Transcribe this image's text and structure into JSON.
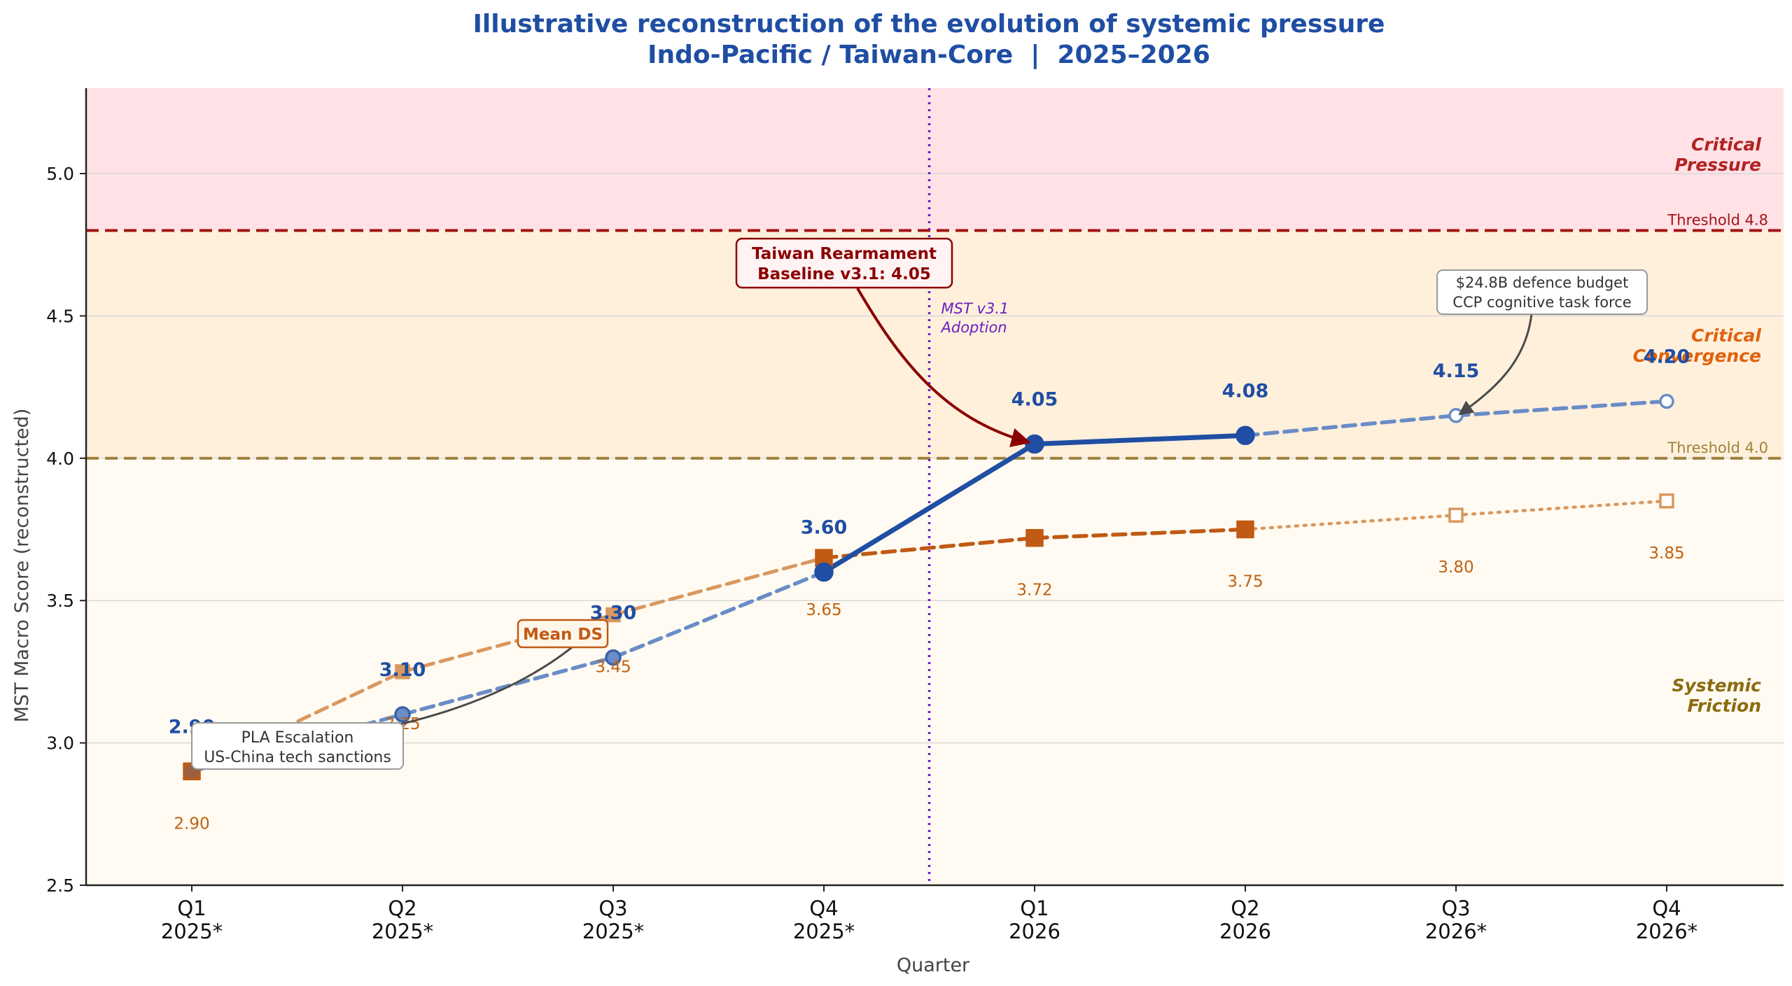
{
  "chart_data": {
    "type": "line",
    "title_line1": "Illustrative reconstruction of the evolution of systemic pressure",
    "title_line2": "Indo-Pacific / Taiwan-Core  |  2025–2026",
    "xlabel": "Quarter",
    "ylabel": "MST Macro Score (reconstructed)",
    "ylim": [
      2.5,
      5.3
    ],
    "yticks": [
      "2.5",
      "3.0",
      "3.5",
      "4.0",
      "4.5",
      "5.0"
    ],
    "categories": [
      [
        "Q1",
        "2025*"
      ],
      [
        "Q2",
        "2025*"
      ],
      [
        "Q3",
        "2025*"
      ],
      [
        "Q4",
        "2025*"
      ],
      [
        "Q1",
        "2026"
      ],
      [
        "Q2",
        "2026"
      ],
      [
        "Q3",
        "2026*"
      ],
      [
        "Q4",
        "2026*"
      ]
    ],
    "zones": [
      {
        "label": "Critical\nPressure",
        "from": 4.8,
        "to": 5.3,
        "color": "#ffe1e6",
        "label_color": "#b22222"
      },
      {
        "label": "Critical\nConvergence",
        "from": 4.0,
        "to": 4.8,
        "color": "#fff0dc",
        "label_color": "#e0620e"
      },
      {
        "label": "Systemic\nFriction",
        "from": 2.5,
        "to": 4.0,
        "color": "#fffbf2",
        "label_color": "#8b6b0e"
      }
    ],
    "thresholds": [
      {
        "value": 4.8,
        "label": "Threshold 4.8",
        "color": "#a31515"
      },
      {
        "value": 4.0,
        "label": "Threshold 4.0",
        "color": "#a0823c"
      }
    ],
    "series": [
      {
        "values": [
          2.9,
          3.1,
          3.3,
          3.6,
          4.05,
          4.08,
          4.15,
          4.2
        ],
        "labels": [
          "2.90",
          "3.10",
          "3.30",
          "3.60",
          "4.05",
          "4.08",
          "4.15",
          "4.20"
        ],
        "color": "#1f4ea3",
        "label_color": "#1f4ea3"
      },
      {
        "values": [
          2.9,
          3.25,
          3.45,
          3.65,
          3.72,
          3.75,
          3.8,
          3.85
        ],
        "labels": [
          "2.90",
          "3.25",
          "3.45",
          "3.65",
          "3.72",
          "3.75",
          "3.80",
          "3.85"
        ],
        "color": "#c05a14",
        "label_color": "#c0600f"
      }
    ],
    "divider": {
      "between": [
        3,
        4
      ],
      "label": "MST v3.1\nAdoption",
      "color": "#6a1fc0"
    },
    "annotations": [
      {
        "text": "Taiwan Rearmament\nBaseline v3.1: 4.05",
        "color": "#8b0000"
      },
      {
        "text": "$24.8B defence budget\nCCP cognitive task force",
        "color": "#333333"
      },
      {
        "text": "PLA Escalation\nUS-China tech sanctions",
        "color": "#333333"
      },
      {
        "text": "Mean DS",
        "color": "#c05a14"
      }
    ]
  }
}
